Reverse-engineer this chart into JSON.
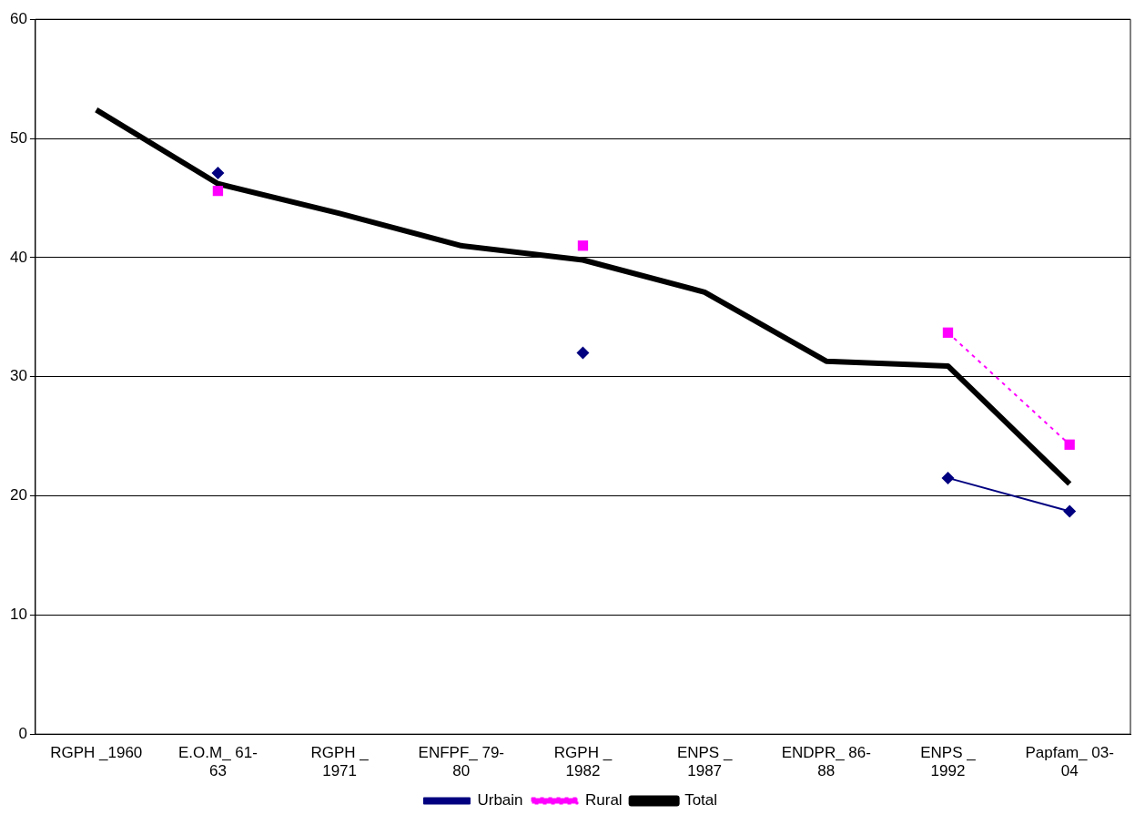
{
  "chart_data": {
    "type": "line",
    "categories": [
      "RGPH _1960",
      "E.O.M_ 61-63",
      "RGPH _ 1971",
      "ENFPF_ 79-80",
      "RGPH _ 1982",
      "ENPS _ 1987",
      "ENDPR_ 86-88",
      "ENPS _ 1992",
      "Papfam_ 03-04"
    ],
    "series": [
      {
        "name": "Urbain",
        "color": "#000080",
        "marker": "diamond",
        "line_style": "solid",
        "values": [
          null,
          47.1,
          null,
          null,
          32.0,
          null,
          null,
          21.5,
          18.7
        ]
      },
      {
        "name": "Rural",
        "color": "#ff00ff",
        "marker": "square",
        "line_style": "dotted",
        "values": [
          null,
          45.6,
          null,
          null,
          41.0,
          null,
          null,
          33.7,
          24.3
        ]
      },
      {
        "name": "Total",
        "color": "#000000",
        "marker": "none",
        "line_style": "solid",
        "values": [
          52.4,
          46.2,
          43.7,
          41.0,
          39.8,
          37.1,
          31.3,
          30.9,
          21.0
        ]
      }
    ],
    "ylim": [
      0,
      60
    ],
    "yticks": [
      0,
      10,
      20,
      30,
      40,
      50,
      60
    ],
    "grid": "y",
    "legend": "bottom"
  }
}
